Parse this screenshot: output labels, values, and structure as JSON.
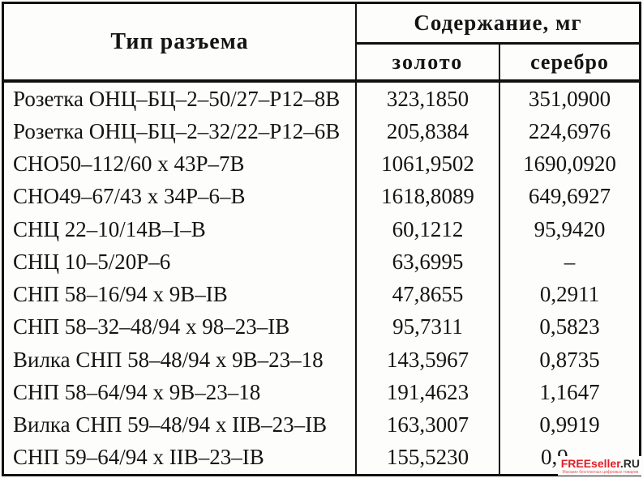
{
  "table": {
    "type_header": "Тип разъема",
    "content_header": "Содержание, мг",
    "gold_header": "золото",
    "silver_header": "серебро",
    "rows": [
      {
        "type": "Розетка ОНЦ–БЦ–2–50/27–Р12–8В",
        "gold": "323,1850",
        "silver": "351,0900"
      },
      {
        "type": "Розетка ОНЦ–БЦ–2–32/22–Р12–6В",
        "gold": "205,8384",
        "silver": "224,6976"
      },
      {
        "type": "СНО50–112/60 х 43Р–7В",
        "gold": "1061,9502",
        "silver": "1690,0920"
      },
      {
        "type": "СНО49–67/43 х 34Р–6–В",
        "gold": "1618,8089",
        "silver": "649,6927"
      },
      {
        "type": "СНЦ 22–10/14В–I–В",
        "gold": "60,1212",
        "silver": "95,9420"
      },
      {
        "type": "СНЦ 10–5/20Р–6",
        "gold": "63,6995",
        "silver": "–"
      },
      {
        "type": "СНП 58–16/94 х 9В–IВ",
        "gold": "47,8655",
        "silver": "0,2911"
      },
      {
        "type": "СНП 58–32–48/94 х 98–23–IВ",
        "gold": "95,7311",
        "silver": "0,5823"
      },
      {
        "type": "Вилка СНП 58–48/94 х 9В–23–18",
        "gold": "143,5967",
        "silver": "0,8735"
      },
      {
        "type": "СНП 58–64/94 х 9В–23–18",
        "gold": "191,4623",
        "silver": "1,1647"
      },
      {
        "type": "Вилка СНП 59–48/94 х IIВ–23–IВ",
        "gold": "163,3007",
        "silver": "0,9919"
      },
      {
        "type": "СНП 59–64/94 х IIВ–23–IВ",
        "gold": "155,5230",
        "silver": "0,9"
      }
    ]
  },
  "watermark": {
    "brand_red": "FREEseller",
    "brand_dark": ".RU",
    "tagline": "Магазин бесплатных цифровых товаров",
    "accent_color": "#e31e24"
  }
}
